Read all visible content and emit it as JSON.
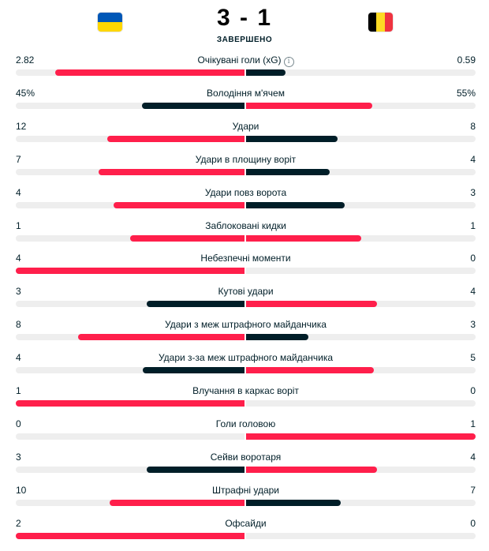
{
  "match": {
    "home_flag": "ukraine-flag",
    "away_flag": "belgium-flag",
    "score": {
      "home": "3",
      "separator": "-",
      "away": "1"
    },
    "status": "ЗАВЕРШЕНО"
  },
  "colors": {
    "winner": "#ff1f4b",
    "loser": "#001e28",
    "track": "#eeeeee"
  },
  "stats": [
    {
      "name": "Очікувані голи (xG)",
      "home": "2.82",
      "away": "0.59",
      "home_val": 2.82,
      "away_val": 0.59,
      "info": true
    },
    {
      "name": "Володіння м'ячем",
      "home": "45%",
      "away": "55%",
      "home_val": 45,
      "away_val": 55
    },
    {
      "name": "Удари",
      "home": "12",
      "away": "8",
      "home_val": 12,
      "away_val": 8
    },
    {
      "name": "Удари в площину воріт",
      "home": "7",
      "away": "4",
      "home_val": 7,
      "away_val": 4
    },
    {
      "name": "Удари повз ворота",
      "home": "4",
      "away": "3",
      "home_val": 4,
      "away_val": 3
    },
    {
      "name": "Заблоковані кидки",
      "home": "1",
      "away": "1",
      "home_val": 1,
      "away_val": 1
    },
    {
      "name": "Небезпечні моменти",
      "home": "4",
      "away": "0",
      "home_val": 4,
      "away_val": 0
    },
    {
      "name": "Кутові удари",
      "home": "3",
      "away": "4",
      "home_val": 3,
      "away_val": 4
    },
    {
      "name": "Удари з меж штрафного майданчика",
      "home": "8",
      "away": "3",
      "home_val": 8,
      "away_val": 3
    },
    {
      "name": "Удари з-за меж штрафного майданчика",
      "home": "4",
      "away": "5",
      "home_val": 4,
      "away_val": 5
    },
    {
      "name": "Влучання в каркас воріт",
      "home": "1",
      "away": "0",
      "home_val": 1,
      "away_val": 0
    },
    {
      "name": "Голи головою",
      "home": "0",
      "away": "1",
      "home_val": 0,
      "away_val": 1
    },
    {
      "name": "Сейви воротаря",
      "home": "3",
      "away": "4",
      "home_val": 3,
      "away_val": 4
    },
    {
      "name": "Штрафні удари",
      "home": "10",
      "away": "7",
      "home_val": 10,
      "away_val": 7
    },
    {
      "name": "Офсайди",
      "home": "2",
      "away": "0",
      "home_val": 2,
      "away_val": 0
    }
  ]
}
